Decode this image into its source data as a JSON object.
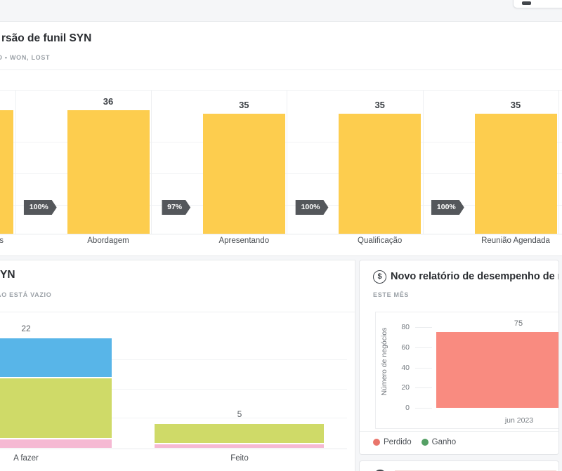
{
  "toolbar": {
    "button_label": ""
  },
  "funnel_card": {
    "title": "rsão de funil SYN",
    "subtitle": "O • WON, LOST",
    "chart_data": {
      "type": "bar",
      "subtype": "funnel-conversion",
      "bar_color": "#FDCD4E",
      "badge_color": "#54575B",
      "stages": [
        {
          "label": "s",
          "value": 36,
          "value_label": "",
          "label_truncated": true
        },
        {
          "label": "Abordagem",
          "value": 36,
          "value_label": "36"
        },
        {
          "label": "Apresentando",
          "value": 35,
          "value_label": "35"
        },
        {
          "label": "Qualificação",
          "value": 35,
          "value_label": "35"
        },
        {
          "label": "Reunião Agendada",
          "value": 35,
          "value_label": "35"
        }
      ],
      "conversions": [
        "100%",
        "97%",
        "100%",
        "100%"
      ]
    }
  },
  "activities_card": {
    "title": "YN",
    "subtitle": "ÃO ESTÁ VAZIO",
    "chart_data": {
      "type": "stacked-bar",
      "categories": [
        "A fazer",
        "Feito"
      ],
      "totals": [
        22,
        5
      ],
      "series": [
        {
          "name": "pink",
          "color": "#F5B9D3",
          "values": [
            2,
            1
          ]
        },
        {
          "name": "green",
          "color": "#CFDA68",
          "values": [
            12,
            4
          ]
        },
        {
          "name": "blue",
          "color": "#58B5E8",
          "values": [
            8,
            0
          ]
        }
      ]
    }
  },
  "performance_card": {
    "icon": "dollar-circle-icon",
    "icon_glyph": "$",
    "title": "Novo relatório de desempenho de negó",
    "subtitle": "ESTE MÊS",
    "chart_data": {
      "type": "bar",
      "categories": [
        "jun 2023"
      ],
      "series": [
        {
          "name": "Perdido",
          "color": "#F98B80",
          "values": [
            75
          ]
        }
      ],
      "value_labels": [
        "75"
      ],
      "ylabel": "Número de negócios",
      "yticks": [
        0,
        20,
        40,
        60,
        80
      ],
      "ylim": [
        0,
        84
      ],
      "grid": false,
      "legend_position": "bottom"
    },
    "legend": [
      {
        "label": "Perdido",
        "color": "#E9756B"
      },
      {
        "label": "Ganho",
        "color": "#55A065"
      }
    ]
  }
}
